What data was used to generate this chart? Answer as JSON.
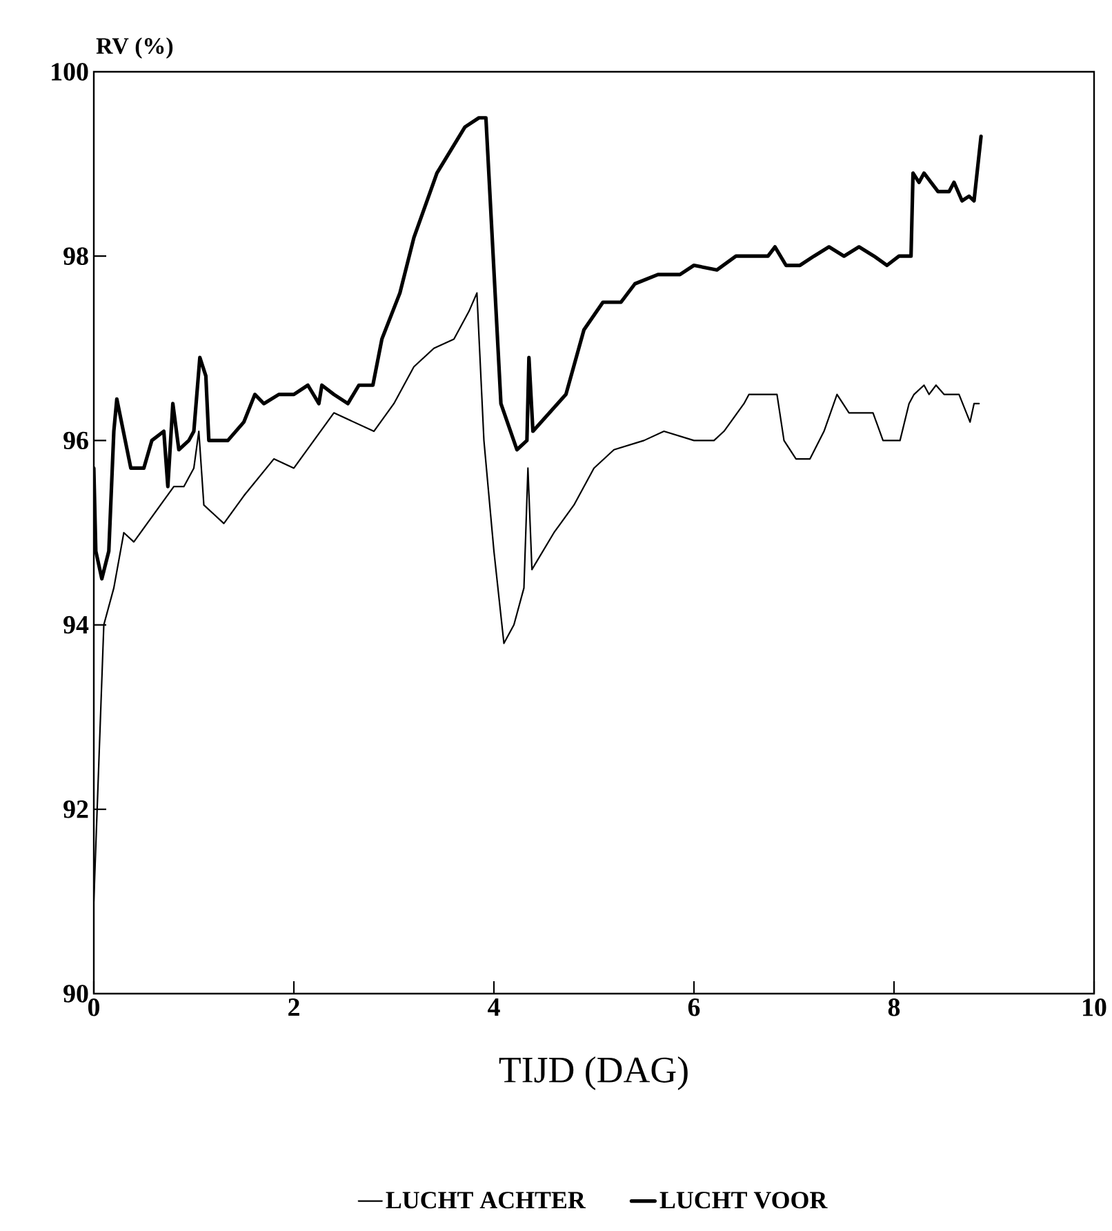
{
  "chart_data": {
    "type": "line",
    "xlabel": "TIJD (DAG)",
    "ylabel": "RV (%)",
    "xlim": [
      0,
      10
    ],
    "ylim": [
      90,
      100
    ],
    "xticks": [
      0,
      2,
      4,
      6,
      8,
      10
    ],
    "yticks": [
      90,
      92,
      94,
      96,
      98,
      100
    ],
    "grid": false,
    "legend": "bottom",
    "marker": "none",
    "line_style": "solid",
    "series": [
      {
        "name": "LUCHT ACHTER",
        "color": "#000000",
        "x": [
          0,
          0.05,
          0.1,
          0.2,
          0.3,
          0.4,
          0.6,
          0.8,
          0.9,
          1.0,
          1.05,
          1.1,
          1.2,
          1.3,
          1.5,
          1.8,
          2.0,
          2.2,
          2.4,
          2.6,
          2.8,
          3.0,
          3.2,
          3.4,
          3.6,
          3.75,
          3.83,
          3.9,
          4.0,
          4.1,
          4.2,
          4.3,
          4.34,
          4.38,
          4.6,
          4.8,
          5.0,
          5.2,
          5.5,
          5.7,
          6.0,
          6.2,
          6.3,
          6.5,
          6.55,
          6.83,
          6.9,
          7.02,
          7.16,
          7.3,
          7.43,
          7.55,
          7.79,
          7.89,
          8.06,
          8.15,
          8.2,
          8.3,
          8.35,
          8.42,
          8.5,
          8.65,
          8.76,
          8.8,
          8.85
        ],
        "values": [
          91.0,
          92.5,
          94.0,
          94.4,
          95.0,
          94.9,
          95.2,
          95.5,
          95.5,
          95.7,
          96.1,
          95.3,
          95.2,
          95.1,
          95.4,
          95.8,
          95.7,
          96.0,
          96.3,
          96.2,
          96.1,
          96.4,
          96.8,
          97.0,
          97.1,
          97.4,
          97.6,
          96.0,
          94.8,
          93.8,
          94.0,
          94.4,
          95.7,
          94.6,
          95.0,
          95.3,
          95.7,
          95.9,
          96.0,
          96.1,
          96.0,
          96.0,
          96.1,
          96.4,
          96.5,
          96.5,
          96.0,
          95.8,
          95.8,
          96.1,
          96.5,
          96.3,
          96.3,
          96.0,
          96.0,
          96.4,
          96.5,
          96.6,
          96.5,
          96.6,
          96.5,
          96.5,
          96.2,
          96.4,
          96.4
        ]
      },
      {
        "name": "LUCHT VOOR",
        "color": "#000000",
        "x": [
          0,
          0.02,
          0.08,
          0.15,
          0.2,
          0.23,
          0.37,
          0.5,
          0.58,
          0.7,
          0.74,
          0.79,
          0.85,
          0.95,
          1.0,
          1.06,
          1.12,
          1.15,
          1.34,
          1.5,
          1.61,
          1.7,
          1.85,
          2.0,
          2.14,
          2.25,
          2.28,
          2.4,
          2.54,
          2.65,
          2.79,
          2.88,
          3.06,
          3.2,
          3.43,
          3.71,
          3.85,
          3.92,
          4.07,
          4.23,
          4.33,
          4.35,
          4.39,
          4.72,
          4.9,
          5.09,
          5.27,
          5.41,
          5.64,
          5.86,
          6.0,
          6.23,
          6.42,
          6.74,
          6.81,
          6.92,
          7.06,
          7.2,
          7.35,
          7.5,
          7.65,
          7.8,
          7.93,
          8.05,
          8.17,
          8.19,
          8.25,
          8.3,
          8.44,
          8.55,
          8.6,
          8.68,
          8.75,
          8.8,
          8.87
        ],
        "values": [
          95.7,
          94.8,
          94.5,
          94.8,
          96.1,
          96.45,
          95.7,
          95.7,
          96.0,
          96.1,
          95.5,
          96.4,
          95.9,
          96.0,
          96.1,
          96.9,
          96.7,
          96.0,
          96.0,
          96.2,
          96.5,
          96.4,
          96.5,
          96.5,
          96.6,
          96.4,
          96.6,
          96.5,
          96.4,
          96.6,
          96.6,
          97.1,
          97.6,
          98.2,
          98.9,
          99.4,
          99.5,
          99.5,
          96.4,
          95.9,
          96.0,
          96.9,
          96.1,
          96.5,
          97.2,
          97.5,
          97.5,
          97.7,
          97.8,
          97.8,
          97.9,
          97.85,
          98.0,
          98.0,
          98.1,
          97.9,
          97.9,
          98.0,
          98.1,
          98.0,
          98.1,
          98.0,
          97.9,
          98.0,
          98.0,
          98.9,
          98.8,
          98.9,
          98.7,
          98.7,
          98.8,
          98.6,
          98.65,
          98.6,
          99.3
        ]
      }
    ]
  }
}
